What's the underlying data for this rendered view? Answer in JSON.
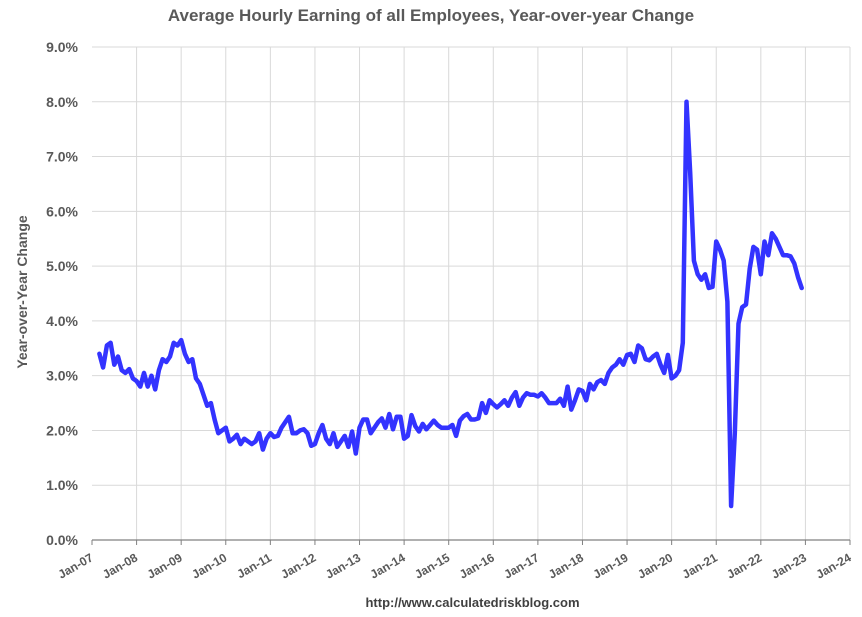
{
  "chart_data": {
    "type": "line",
    "title": "Average Hourly Earning of all Employees, Year-over-year Change",
    "ylabel": "Year-over-Year Change",
    "xlabel": "",
    "ylim": [
      0,
      9
    ],
    "xlim": [
      "2007-01",
      "2024-01"
    ],
    "y_ticks": [
      "0.0%",
      "1.0%",
      "2.0%",
      "3.0%",
      "4.0%",
      "5.0%",
      "6.0%",
      "7.0%",
      "8.0%",
      "9.0%"
    ],
    "x_ticks": [
      "Jan-07",
      "Jan-08",
      "Jan-09",
      "Jan-10",
      "Jan-11",
      "Jan-12",
      "Jan-13",
      "Jan-14",
      "Jan-15",
      "Jan-16",
      "Jan-17",
      "Jan-18",
      "Jan-19",
      "Jan-20",
      "Jan-21",
      "Jan-22",
      "Jan-23",
      "Jan-24"
    ],
    "grid": true,
    "series_color": "#3333ff",
    "series": [
      {
        "name": "",
        "x": [
          "2007-03",
          "2007-04",
          "2007-05",
          "2007-06",
          "2007-07",
          "2007-08",
          "2007-09",
          "2007-10",
          "2007-11",
          "2007-12",
          "2008-01",
          "2008-02",
          "2008-03",
          "2008-04",
          "2008-05",
          "2008-06",
          "2008-07",
          "2008-08",
          "2008-09",
          "2008-10",
          "2008-11",
          "2008-12",
          "2009-01",
          "2009-02",
          "2009-03",
          "2009-04",
          "2009-05",
          "2009-06",
          "2009-07",
          "2009-08",
          "2009-09",
          "2009-10",
          "2009-11",
          "2009-12",
          "2010-01",
          "2010-02",
          "2010-03",
          "2010-04",
          "2010-05",
          "2010-06",
          "2010-07",
          "2010-08",
          "2010-09",
          "2010-10",
          "2010-11",
          "2010-12",
          "2011-01",
          "2011-02",
          "2011-03",
          "2011-04",
          "2011-05",
          "2011-06",
          "2011-07",
          "2011-08",
          "2011-09",
          "2011-10",
          "2011-11",
          "2011-12",
          "2012-01",
          "2012-02",
          "2012-03",
          "2012-04",
          "2012-05",
          "2012-06",
          "2012-07",
          "2012-08",
          "2012-09",
          "2012-10",
          "2012-11",
          "2012-12",
          "2013-01",
          "2013-02",
          "2013-03",
          "2013-04",
          "2013-05",
          "2013-06",
          "2013-07",
          "2013-08",
          "2013-09",
          "2013-10",
          "2013-11",
          "2013-12",
          "2014-01",
          "2014-02",
          "2014-03",
          "2014-04",
          "2014-05",
          "2014-06",
          "2014-07",
          "2014-08",
          "2014-09",
          "2014-10",
          "2014-11",
          "2014-12",
          "2015-01",
          "2015-02",
          "2015-03",
          "2015-04",
          "2015-05",
          "2015-06",
          "2015-07",
          "2015-08",
          "2015-09",
          "2015-10",
          "2015-11",
          "2015-12",
          "2016-01",
          "2016-02",
          "2016-03",
          "2016-04",
          "2016-05",
          "2016-06",
          "2016-07",
          "2016-08",
          "2016-09",
          "2016-10",
          "2016-11",
          "2016-12",
          "2017-01",
          "2017-02",
          "2017-03",
          "2017-04",
          "2017-05",
          "2017-06",
          "2017-07",
          "2017-08",
          "2017-09",
          "2017-10",
          "2017-11",
          "2017-12",
          "2018-01",
          "2018-02",
          "2018-03",
          "2018-04",
          "2018-05",
          "2018-06",
          "2018-07",
          "2018-08",
          "2018-09",
          "2018-10",
          "2018-11",
          "2018-12",
          "2019-01",
          "2019-02",
          "2019-03",
          "2019-04",
          "2019-05",
          "2019-06",
          "2019-07",
          "2019-08",
          "2019-09",
          "2019-10",
          "2019-11",
          "2019-12",
          "2020-01",
          "2020-02",
          "2020-03",
          "2020-04",
          "2020-05",
          "2020-06",
          "2020-07",
          "2020-08",
          "2020-09",
          "2020-10",
          "2020-11",
          "2020-12",
          "2021-01",
          "2021-02",
          "2021-03",
          "2021-04",
          "2021-05",
          "2021-06",
          "2021-07",
          "2021-08",
          "2021-09",
          "2021-10",
          "2021-11",
          "2021-12",
          "2022-01",
          "2022-02",
          "2022-03",
          "2022-04",
          "2022-05",
          "2022-06",
          "2022-07",
          "2022-08",
          "2022-09",
          "2022-10",
          "2022-11",
          "2022-12"
        ],
        "y": [
          3.4,
          3.15,
          3.55,
          3.6,
          3.2,
          3.35,
          3.1,
          3.05,
          3.12,
          2.95,
          2.9,
          2.8,
          3.05,
          2.8,
          3.0,
          2.75,
          3.1,
          3.3,
          3.25,
          3.35,
          3.6,
          3.55,
          3.65,
          3.4,
          3.25,
          3.3,
          2.95,
          2.85,
          2.65,
          2.45,
          2.5,
          2.2,
          1.95,
          2.0,
          2.05,
          1.8,
          1.85,
          1.92,
          1.75,
          1.85,
          1.8,
          1.75,
          1.8,
          1.95,
          1.65,
          1.85,
          1.95,
          1.88,
          1.9,
          2.05,
          2.15,
          2.25,
          1.95,
          1.95,
          2.0,
          2.02,
          1.95,
          1.72,
          1.75,
          1.95,
          2.1,
          1.85,
          1.75,
          1.95,
          1.7,
          1.8,
          1.9,
          1.7,
          1.98,
          1.58,
          2.05,
          2.2,
          2.2,
          1.95,
          2.05,
          2.15,
          2.22,
          2.05,
          2.3,
          2.02,
          2.25,
          2.25,
          1.85,
          1.9,
          2.28,
          2.08,
          1.98,
          2.12,
          2.02,
          2.1,
          2.18,
          2.1,
          2.05,
          2.05,
          2.05,
          2.1,
          1.9,
          2.18,
          2.26,
          2.3,
          2.2,
          2.2,
          2.22,
          2.5,
          2.32,
          2.55,
          2.48,
          2.42,
          2.48,
          2.55,
          2.45,
          2.6,
          2.7,
          2.45,
          2.6,
          2.68,
          2.65,
          2.65,
          2.62,
          2.68,
          2.6,
          2.5,
          2.5,
          2.5,
          2.58,
          2.45,
          2.8,
          2.38,
          2.55,
          2.75,
          2.72,
          2.55,
          2.85,
          2.75,
          2.88,
          2.92,
          2.85,
          3.05,
          3.15,
          3.2,
          3.3,
          3.2,
          3.38,
          3.4,
          3.25,
          3.55,
          3.5,
          3.3,
          3.28,
          3.35,
          3.4,
          3.2,
          3.05,
          3.38,
          2.95,
          3.0,
          3.1,
          3.6,
          8.0,
          6.7,
          5.1,
          4.85,
          4.75,
          4.85,
          4.6,
          4.62,
          5.45,
          5.3,
          5.1,
          4.35,
          0.62,
          1.95,
          3.95,
          4.25,
          4.3,
          4.95,
          5.35,
          5.3,
          4.85,
          5.45,
          5.2,
          5.6,
          5.5,
          5.35,
          5.2,
          5.2,
          5.18,
          5.05,
          4.8,
          4.6
        ]
      }
    ]
  },
  "source_url": "http://www.calculatedriskblog.com"
}
